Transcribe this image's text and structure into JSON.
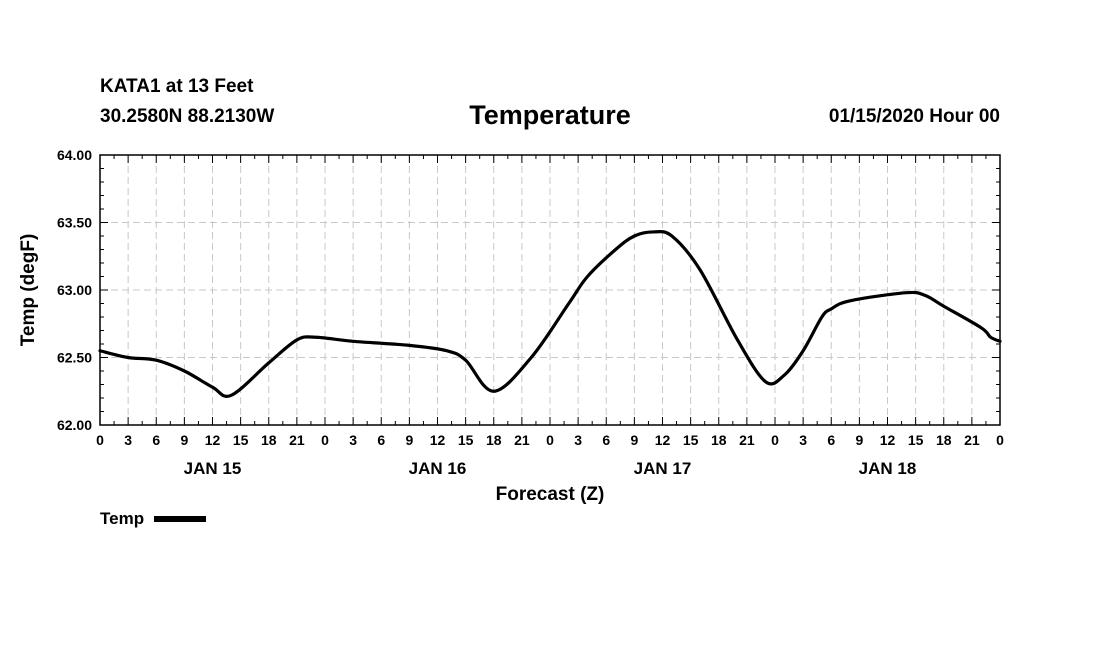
{
  "header": {
    "station": "KATA1 at 13 Feet",
    "coords": "30.2580N 88.2130W",
    "issued": "01/15/2020 Hour 00"
  },
  "chart_data": {
    "type": "line",
    "title": "Temperature",
    "xlabel": "Forecast (Z)",
    "ylabel": "Temp (degF)",
    "ylim": [
      62.0,
      64.0
    ],
    "yticks": [
      "62.00",
      "62.50",
      "63.00",
      "63.50",
      "64.00"
    ],
    "xlim_hours": [
      0,
      96
    ],
    "xtick_step_hours": 3,
    "xtick_labels": [
      "0",
      "3",
      "6",
      "9",
      "12",
      "15",
      "18",
      "21",
      "0",
      "3",
      "6",
      "9",
      "12",
      "15",
      "18",
      "21",
      "0",
      "3",
      "6",
      "9",
      "12",
      "15",
      "18",
      "21",
      "0",
      "3",
      "6",
      "9",
      "12",
      "15",
      "18",
      "21",
      "0"
    ],
    "day_labels": [
      {
        "label": "JAN 15",
        "hour": 12
      },
      {
        "label": "JAN 16",
        "hour": 36
      },
      {
        "label": "JAN 17",
        "hour": 60
      },
      {
        "label": "JAN 18",
        "hour": 84
      }
    ],
    "grid": true,
    "legend": "bottom-left",
    "series": [
      {
        "name": "Temp",
        "color": "#000000",
        "x": [
          0,
          3,
          6,
          9,
          12,
          14,
          18,
          21,
          23,
          27,
          33,
          37,
          39,
          42,
          46,
          50,
          52,
          55,
          57,
          59,
          61,
          64,
          68,
          71,
          73,
          75,
          77,
          78,
          80,
          86,
          88,
          90,
          94,
          95,
          96
        ],
        "values": [
          62.55,
          62.5,
          62.48,
          62.4,
          62.28,
          62.22,
          62.46,
          62.63,
          62.65,
          62.62,
          62.59,
          62.55,
          62.48,
          62.25,
          62.5,
          62.9,
          63.1,
          63.3,
          63.4,
          63.43,
          63.4,
          63.15,
          62.63,
          62.32,
          62.37,
          62.55,
          62.8,
          62.86,
          62.92,
          62.98,
          62.96,
          62.88,
          62.72,
          62.65,
          62.62
        ]
      }
    ]
  },
  "legend": {
    "label": "Temp"
  }
}
